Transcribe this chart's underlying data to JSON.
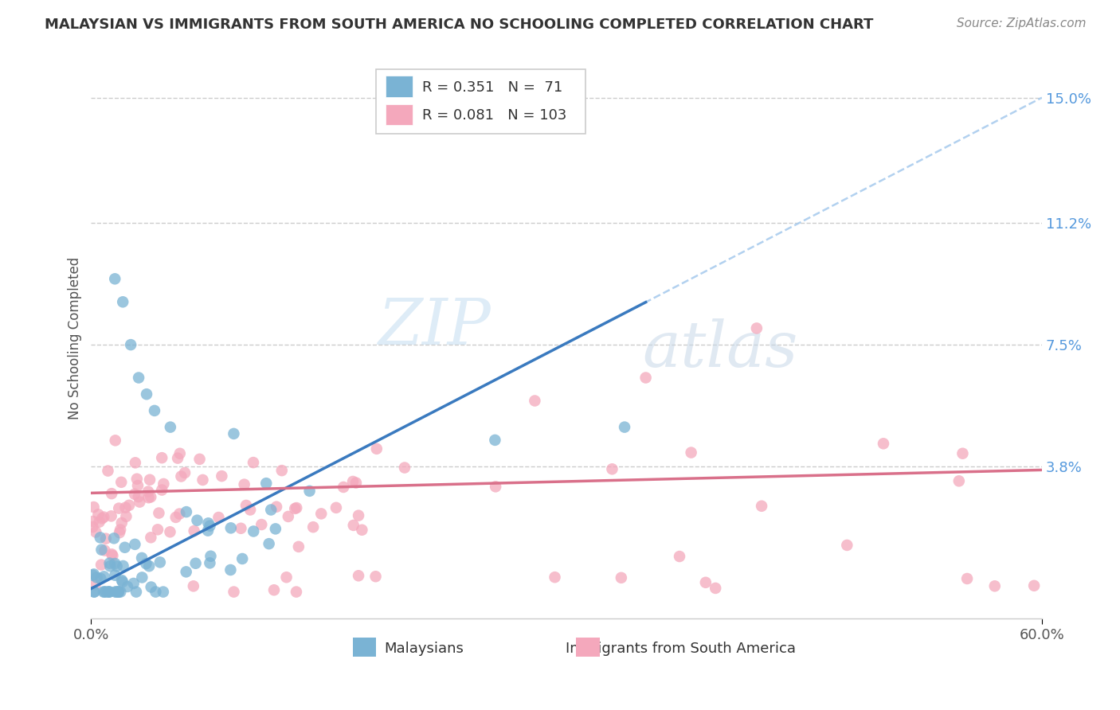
{
  "title": "MALAYSIAN VS IMMIGRANTS FROM SOUTH AMERICA NO SCHOOLING COMPLETED CORRELATION CHART",
  "source": "Source: ZipAtlas.com",
  "ylabel": "No Schooling Completed",
  "xlim": [
    0.0,
    0.6
  ],
  "ylim": [
    -0.008,
    0.162
  ],
  "ytick_positions": [
    0.038,
    0.075,
    0.112,
    0.15
  ],
  "ytick_labels": [
    "3.8%",
    "7.5%",
    "11.2%",
    "15.0%"
  ],
  "blue_R": "0.351",
  "blue_N": "71",
  "pink_R": "0.081",
  "pink_N": "103",
  "blue_scatter_color": "#7ab3d4",
  "pink_scatter_color": "#f4a8bc",
  "trend_line_blue_color": "#3a7abf",
  "trend_line_pink_color": "#d9708a",
  "trend_dashed_color": "#aaccee",
  "watermark_zip": "ZIP",
  "watermark_atlas": "atlas",
  "background_color": "#ffffff",
  "grid_color": "#cccccc",
  "legend_border_color": "#cccccc",
  "title_color": "#333333",
  "source_color": "#888888",
  "ytick_color": "#5599dd",
  "xtick_color": "#555555",
  "ylabel_color": "#555555"
}
